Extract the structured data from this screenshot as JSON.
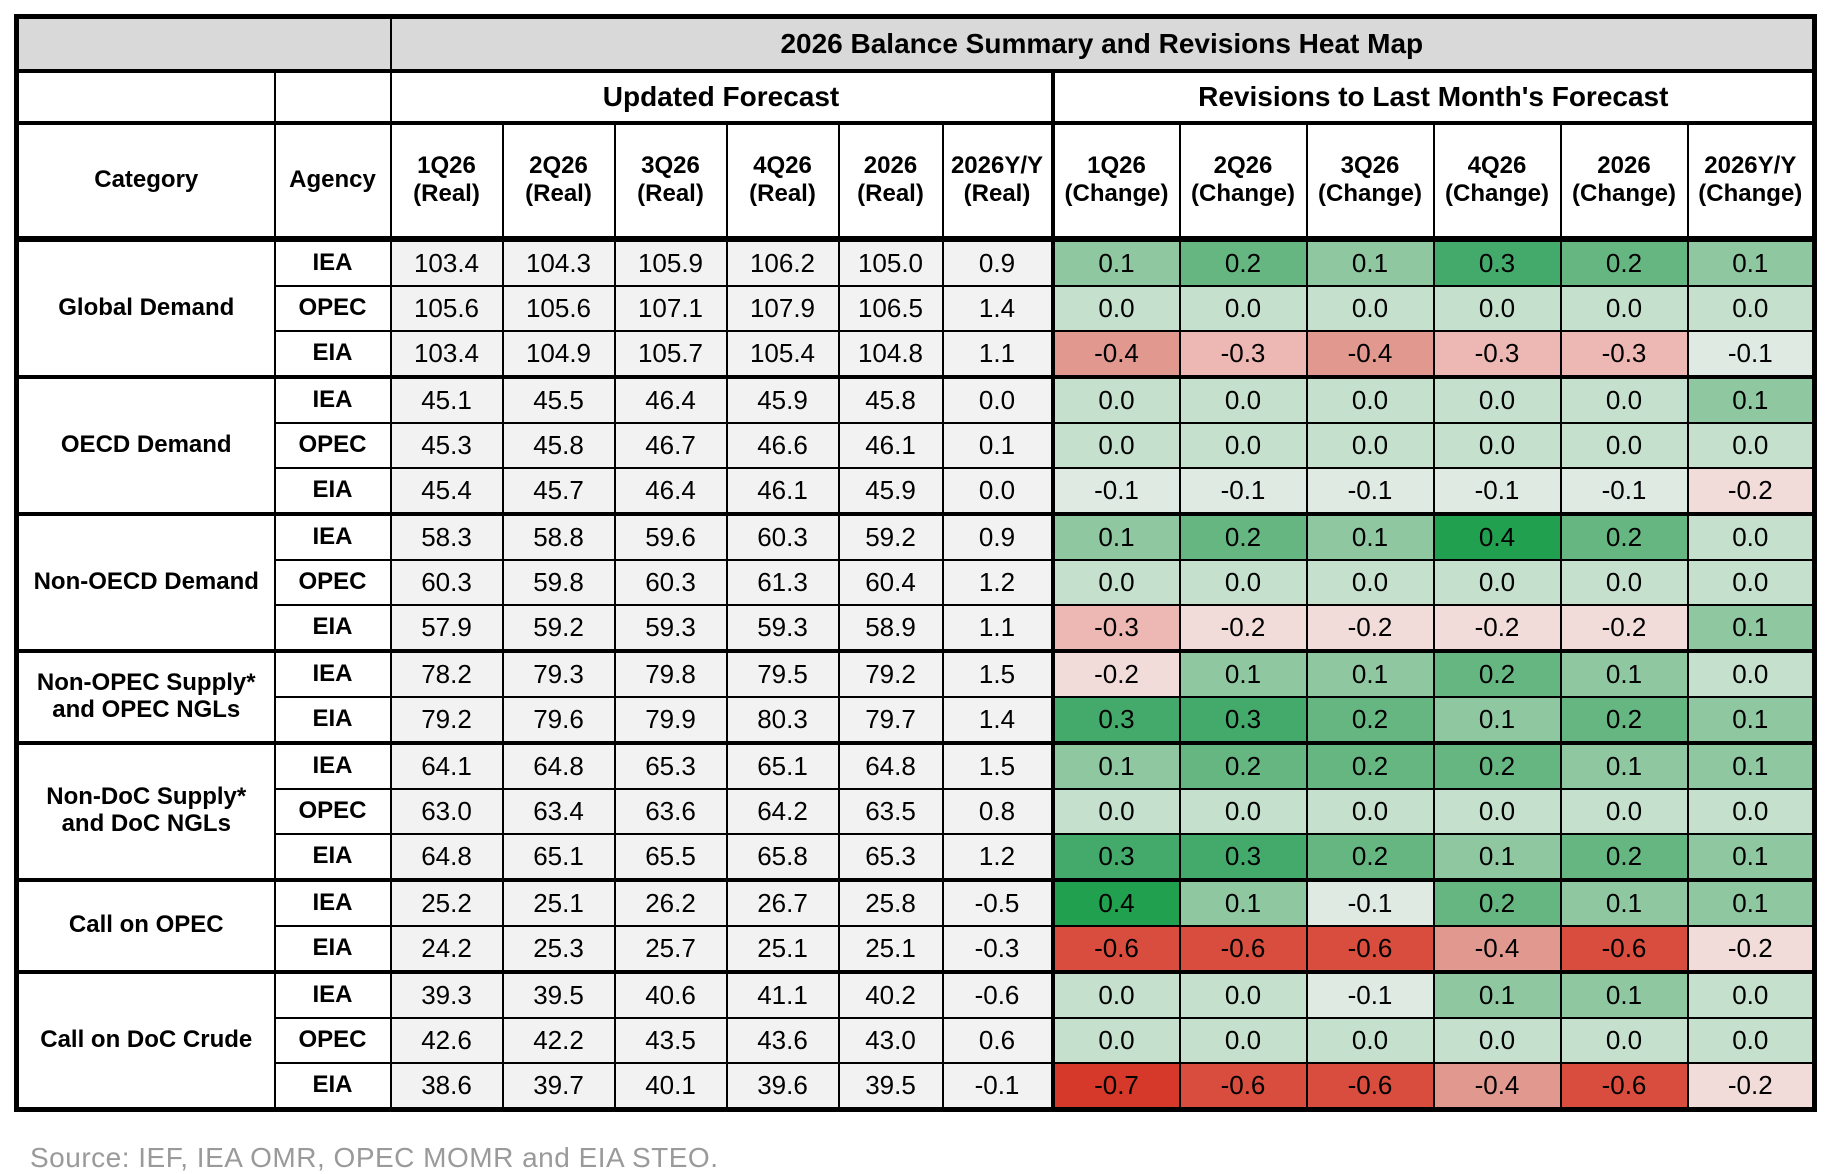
{
  "chart_data": {
    "type": "heatmap",
    "title": "2026 Balance Summary and Revisions Heat Map",
    "section_headers": {
      "updated": "Updated Forecast",
      "revisions": "Revisions to Last Month's Forecast"
    },
    "row_header_labels": {
      "category": "Category",
      "agency": "Agency"
    },
    "real_columns": [
      {
        "top": "1Q26",
        "bottom": "(Real)"
      },
      {
        "top": "2Q26",
        "bottom": "(Real)"
      },
      {
        "top": "3Q26",
        "bottom": "(Real)"
      },
      {
        "top": "4Q26",
        "bottom": "(Real)"
      },
      {
        "top": "2026",
        "bottom": "(Real)"
      },
      {
        "top": "2026Y/Y",
        "bottom": "(Real)"
      }
    ],
    "change_columns": [
      {
        "top": "1Q26",
        "bottom": "(Change)"
      },
      {
        "top": "2Q26",
        "bottom": "(Change)"
      },
      {
        "top": "3Q26",
        "bottom": "(Change)"
      },
      {
        "top": "4Q26",
        "bottom": "(Change)"
      },
      {
        "top": "2026",
        "bottom": "(Change)"
      },
      {
        "top": "2026Y/Y",
        "bottom": "(Change)"
      }
    ],
    "groups": [
      {
        "category": "Global Demand",
        "rows": [
          {
            "agency": "IEA",
            "real": [
              "103.4",
              "104.3",
              "105.9",
              "106.2",
              "105.0",
              "0.9"
            ],
            "change": [
              "0.1",
              "0.2",
              "0.1",
              "0.3",
              "0.2",
              "0.1"
            ]
          },
          {
            "agency": "OPEC",
            "real": [
              "105.6",
              "105.6",
              "107.1",
              "107.9",
              "106.5",
              "1.4"
            ],
            "change": [
              "0.0",
              "0.0",
              "0.0",
              "0.0",
              "0.0",
              "0.0"
            ]
          },
          {
            "agency": "EIA",
            "real": [
              "103.4",
              "104.9",
              "105.7",
              "105.4",
              "104.8",
              "1.1"
            ],
            "change": [
              "-0.4",
              "-0.3",
              "-0.4",
              "-0.3",
              "-0.3",
              "-0.1"
            ]
          }
        ]
      },
      {
        "category": "OECD Demand",
        "rows": [
          {
            "agency": "IEA",
            "real": [
              "45.1",
              "45.5",
              "46.4",
              "45.9",
              "45.8",
              "0.0"
            ],
            "change": [
              "0.0",
              "0.0",
              "0.0",
              "0.0",
              "0.0",
              "0.1"
            ]
          },
          {
            "agency": "OPEC",
            "real": [
              "45.3",
              "45.8",
              "46.7",
              "46.6",
              "46.1",
              "0.1"
            ],
            "change": [
              "0.0",
              "0.0",
              "0.0",
              "0.0",
              "0.0",
              "0.0"
            ]
          },
          {
            "agency": "EIA",
            "real": [
              "45.4",
              "45.7",
              "46.4",
              "46.1",
              "45.9",
              "0.0"
            ],
            "change": [
              "-0.1",
              "-0.1",
              "-0.1",
              "-0.1",
              "-0.1",
              "-0.2"
            ]
          }
        ]
      },
      {
        "category": "Non-OECD Demand",
        "rows": [
          {
            "agency": "IEA",
            "real": [
              "58.3",
              "58.8",
              "59.6",
              "60.3",
              "59.2",
              "0.9"
            ],
            "change": [
              "0.1",
              "0.2",
              "0.1",
              "0.4",
              "0.2",
              "0.0"
            ]
          },
          {
            "agency": "OPEC",
            "real": [
              "60.3",
              "59.8",
              "60.3",
              "61.3",
              "60.4",
              "1.2"
            ],
            "change": [
              "0.0",
              "0.0",
              "0.0",
              "0.0",
              "0.0",
              "0.0"
            ]
          },
          {
            "agency": "EIA",
            "real": [
              "57.9",
              "59.2",
              "59.3",
              "59.3",
              "58.9",
              "1.1"
            ],
            "change": [
              "-0.3",
              "-0.2",
              "-0.2",
              "-0.2",
              "-0.2",
              "0.1"
            ]
          }
        ]
      },
      {
        "category": "Non-OPEC Supply* and OPEC NGLs",
        "rows": [
          {
            "agency": "IEA",
            "real": [
              "78.2",
              "79.3",
              "79.8",
              "79.5",
              "79.2",
              "1.5"
            ],
            "change": [
              "-0.2",
              "0.1",
              "0.1",
              "0.2",
              "0.1",
              "0.0"
            ]
          },
          {
            "agency": "EIA",
            "real": [
              "79.2",
              "79.6",
              "79.9",
              "80.3",
              "79.7",
              "1.4"
            ],
            "change": [
              "0.3",
              "0.3",
              "0.2",
              "0.1",
              "0.2",
              "0.1"
            ]
          }
        ]
      },
      {
        "category": "Non-DoC Supply* and DoC NGLs",
        "rows": [
          {
            "agency": "IEA",
            "real": [
              "64.1",
              "64.8",
              "65.3",
              "65.1",
              "64.8",
              "1.5"
            ],
            "change": [
              "0.1",
              "0.2",
              "0.2",
              "0.2",
              "0.1",
              "0.1"
            ]
          },
          {
            "agency": "OPEC",
            "real": [
              "63.0",
              "63.4",
              "63.6",
              "64.2",
              "63.5",
              "0.8"
            ],
            "change": [
              "0.0",
              "0.0",
              "0.0",
              "0.0",
              "0.0",
              "0.0"
            ]
          },
          {
            "agency": "EIA",
            "real": [
              "64.8",
              "65.1",
              "65.5",
              "65.8",
              "65.3",
              "1.2"
            ],
            "change": [
              "0.3",
              "0.3",
              "0.2",
              "0.1",
              "0.2",
              "0.1"
            ]
          }
        ]
      },
      {
        "category": "Call on OPEC",
        "rows": [
          {
            "agency": "IEA",
            "real": [
              "25.2",
              "25.1",
              "26.2",
              "26.7",
              "25.8",
              "-0.5"
            ],
            "change": [
              "0.4",
              "0.1",
              "-0.1",
              "0.2",
              "0.1",
              "0.1"
            ]
          },
          {
            "agency": "EIA",
            "real": [
              "24.2",
              "25.3",
              "25.7",
              "25.1",
              "25.1",
              "-0.3"
            ],
            "change": [
              "-0.6",
              "-0.6",
              "-0.6",
              "-0.4",
              "-0.6",
              "-0.2"
            ]
          }
        ]
      },
      {
        "category": "Call on DoC Crude",
        "rows": [
          {
            "agency": "IEA",
            "real": [
              "39.3",
              "39.5",
              "40.6",
              "41.1",
              "40.2",
              "-0.6"
            ],
            "change": [
              "0.0",
              "0.0",
              "-0.1",
              "0.1",
              "0.1",
              "0.0"
            ]
          },
          {
            "agency": "OPEC",
            "real": [
              "42.6",
              "42.2",
              "43.5",
              "43.6",
              "43.0",
              "0.6"
            ],
            "change": [
              "0.0",
              "0.0",
              "0.0",
              "0.0",
              "0.0",
              "0.0"
            ]
          },
          {
            "agency": "EIA",
            "real": [
              "38.6",
              "39.7",
              "40.1",
              "39.6",
              "39.5",
              "-0.1"
            ],
            "change": [
              "-0.7",
              "-0.6",
              "-0.6",
              "-0.4",
              "-0.6",
              "-0.2"
            ]
          }
        ]
      }
    ],
    "heat_colors": {
      "0.4": "#21a050",
      "0.3": "#44aa6b",
      "0.2": "#66b682",
      "0.1": "#8fc7a1",
      "0.0": "#c5e0cd",
      "-0.1": "#dfeae2",
      "-0.2": "#f2dcda",
      "-0.3": "#edb8b3",
      "-0.4": "#e0988f",
      "-0.6": "#d94d3e",
      "-0.7": "#d63829"
    },
    "style_colors": {
      "header_bg": "#d9d9d9",
      "real_cell_bg": "#f2f2f2",
      "source_text": "#9a9a9a"
    },
    "source": "Source: IEF, IEA OMR, OPEC MOMR and EIA STEO."
  }
}
